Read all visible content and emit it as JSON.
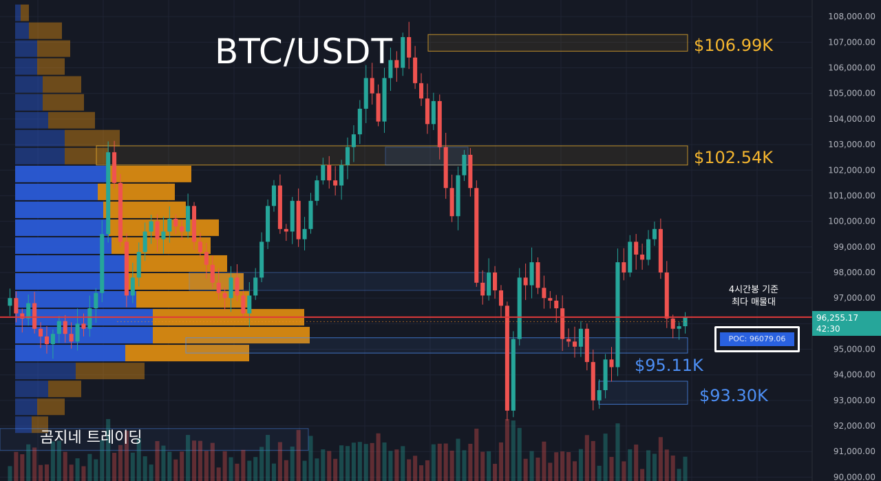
{
  "title": "BTC/USDT",
  "branding": "곰지네 트레이딩",
  "note": {
    "line1": "4시간봉 기준",
    "line2": "최다 매물대"
  },
  "poc_label": "POC: 96079.06",
  "current_price": {
    "value": "96,255.17",
    "countdown": "42:30"
  },
  "levels": {
    "l106": "$106.99K",
    "l102": "$102.54K",
    "l95": "$95.11K",
    "l93": "$93.30K"
  },
  "colors": {
    "up": "#26a69a",
    "down": "#ef5350",
    "profile_blue": "#2a5bd7",
    "profile_orange": "#d98a12",
    "level_yellow": "#f5b62f",
    "level_blue": "#4d8ff5",
    "price_line": "#e03a3a"
  },
  "chart_data": {
    "type": "candlestick",
    "symbol": "BTC/USDT",
    "timeframe": "4h",
    "y_ticks": [
      "108,000.00",
      "107,000.00",
      "106,000.00",
      "105,000.00",
      "104,000.00",
      "103,000.00",
      "102,000.00",
      "101,000.00",
      "100,000.00",
      "99,000.00",
      "98,000.00",
      "97,000.00",
      "96,000.00",
      "95,000.00",
      "94,000.00",
      "93,000.00",
      "92,000.00",
      "91,000.00",
      "90,000.00"
    ],
    "ylim": [
      89850,
      108650
    ],
    "current_price": 96255.17,
    "poc": 96079.06,
    "resistance_zones": [
      {
        "label": "$106.99K",
        "low": 106650,
        "high": 107300
      },
      {
        "label": "$102.54K",
        "low": 102200,
        "high": 102950
      }
    ],
    "support_zones": [
      {
        "label": "$95.11K",
        "low": 94850,
        "high": 95450
      },
      {
        "label": "$93.30K",
        "low": 92850,
        "high": 93750
      }
    ],
    "close_path": [
      97000,
      96400,
      96200,
      96800,
      95800,
      95500,
      95200,
      95600,
      96100,
      95600,
      95300,
      96000,
      95800,
      96600,
      97200,
      99500,
      102700,
      101500,
      99200,
      97100,
      97800,
      98800,
      99600,
      100000,
      99300,
      99600,
      100100,
      99800,
      99600,
      100600,
      99200,
      98800,
      98300,
      97600,
      97200,
      97000,
      97800,
      97100,
      96400,
      97100,
      97800,
      99200,
      100600,
      101400,
      99700,
      99600,
      100800,
      99300,
      99700,
      100800,
      101600,
      102200,
      101600,
      101400,
      102200,
      102900,
      103400,
      104400,
      105600,
      105000,
      103900,
      105600,
      106300,
      106000,
      107200,
      106400,
      105400,
      104800,
      103800,
      104700,
      102900,
      101300,
      100200,
      101800,
      102600,
      101300,
      97600,
      97100,
      98000,
      97300,
      96700,
      92600,
      95400,
      97800,
      97500,
      98400,
      97400,
      97000,
      96900,
      96600,
      95400,
      95300,
      95100,
      95800,
      94500,
      93000,
      93400,
      94600,
      94300,
      98400,
      98000,
      99200,
      98700,
      98500,
      99300,
      99700,
      98000,
      96200,
      95800,
      95900,
      96260
    ],
    "volume_profile": {
      "bins_high": [
        108500,
        107800,
        107100,
        106400,
        105700,
        105000,
        104300,
        103600,
        102900,
        102200,
        101500,
        100800,
        100100,
        99400,
        98700,
        98000,
        97300,
        96600,
        95900,
        95200,
        94500,
        93800,
        93100,
        92400
      ],
      "bid": [
        2,
        5,
        8,
        8,
        10,
        10,
        12,
        18,
        18,
        34,
        30,
        32,
        34,
        35,
        40,
        40,
        44,
        50,
        50,
        40,
        22,
        12,
        8,
        6
      ],
      "ask": [
        3,
        12,
        12,
        10,
        14,
        15,
        17,
        20,
        16,
        30,
        28,
        30,
        40,
        36,
        37,
        43,
        41,
        55,
        57,
        45,
        25,
        12,
        10,
        6
      ]
    }
  }
}
